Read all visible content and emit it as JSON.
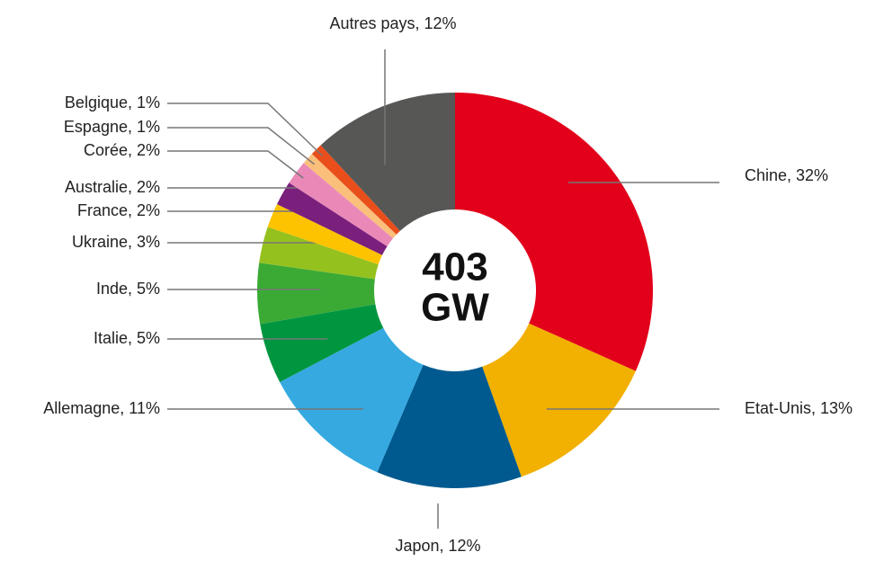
{
  "chart_data": {
    "type": "donut",
    "value_labels": [
      "Chine, 32%",
      "Etat-Unis, 13%",
      "Japon, 12%",
      "Allemagne, 11%",
      "Italie, 5%",
      "Inde, 5%",
      "Ukraine, 3%",
      "France, 2%",
      "Australie, 2%",
      "Corée, 2%",
      "Espagne, 1%",
      "Belgique, 1%",
      "Autres pays, 12%"
    ],
    "values": [
      32,
      13,
      12,
      11,
      5,
      5,
      3,
      2,
      2,
      2,
      1,
      1,
      12
    ],
    "colors": [
      "#e2001a",
      "#f2b000",
      "#005a8f",
      "#36a9e1",
      "#009640",
      "#3aaa35",
      "#95c11f",
      "#fdc300",
      "#7b1f7d",
      "#ea89b8",
      "#fbbf7c",
      "#e94e1b",
      "#575756"
    ],
    "center_text": [
      "403",
      "GW"
    ]
  }
}
